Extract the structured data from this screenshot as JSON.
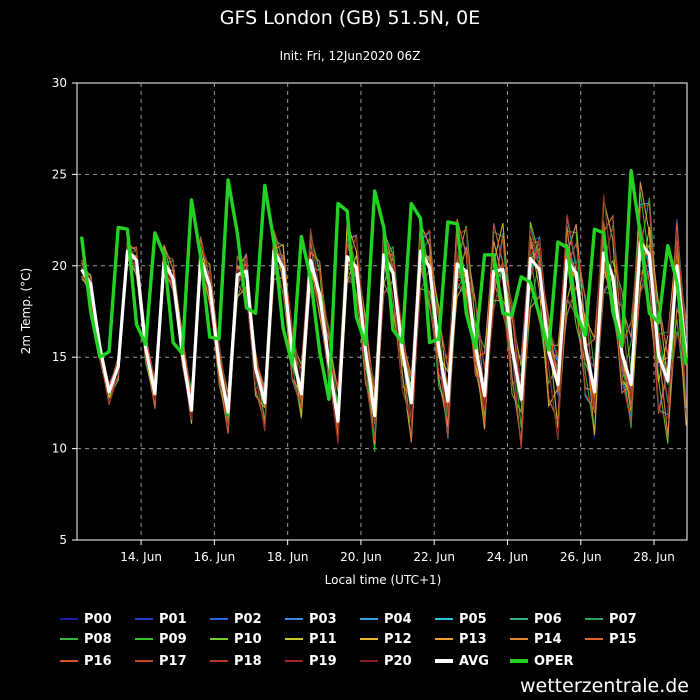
{
  "chart_data": {
    "type": "line",
    "title": "GFS London (GB) 51.5N, 0E",
    "subtitle": "Init: Fri, 12Jun2020 06Z",
    "xlabel": "Local time (UTC+1)",
    "ylabel": "2m Temp. (°C)",
    "ylim": [
      5,
      30
    ],
    "yticks": [
      5,
      10,
      15,
      20,
      25,
      30
    ],
    "xlim_days": [
      12.25,
      28.9
    ],
    "xticks": [
      {
        "day": 14,
        "label": "14. Jun"
      },
      {
        "day": 16,
        "label": "16. Jun"
      },
      {
        "day": 18,
        "label": "18. Jun"
      },
      {
        "day": 20,
        "label": "20. Jun"
      },
      {
        "day": 22,
        "label": "22. Jun"
      },
      {
        "day": 24,
        "label": "24. Jun"
      },
      {
        "day": 26,
        "label": "26. Jun"
      },
      {
        "day": 28,
        "label": "28. Jun"
      }
    ],
    "grid": true,
    "legend_position": "bottom",
    "x_days": [
      12.375,
      12.625,
      12.875,
      13.125,
      13.375,
      13.625,
      13.875,
      14.125,
      14.375,
      14.625,
      14.875,
      15.125,
      15.375,
      15.625,
      15.875,
      16.125,
      16.375,
      16.625,
      16.875,
      17.125,
      17.375,
      17.625,
      17.875,
      18.125,
      18.375,
      18.625,
      18.875,
      19.125,
      19.375,
      19.625,
      19.875,
      20.125,
      20.375,
      20.625,
      20.875,
      21.125,
      21.375,
      21.625,
      21.875,
      22.125,
      22.375,
      22.625,
      22.875,
      23.125,
      23.375,
      23.625,
      23.875,
      24.125,
      24.375,
      24.625,
      24.875,
      25.125,
      25.375,
      25.625,
      25.875,
      26.125,
      26.375,
      26.625,
      26.875,
      27.125,
      27.375,
      27.625,
      27.875,
      28.125,
      28.375,
      28.625,
      28.875
    ],
    "avg": [
      19.8,
      19.0,
      15.5,
      13.1,
      14.5,
      20.8,
      20.3,
      15.5,
      13.0,
      20.2,
      19.3,
      15.2,
      12.1,
      20.4,
      18.9,
      14.6,
      12.0,
      19.5,
      19.7,
      14.4,
      12.5,
      20.8,
      19.9,
      15.2,
      13.0,
      20.3,
      18.4,
      14.7,
      11.5,
      20.5,
      19.9,
      15.4,
      11.8,
      20.6,
      19.6,
      15.4,
      12.5,
      20.8,
      19.9,
      15.5,
      12.6,
      20.1,
      19.7,
      15.6,
      12.9,
      19.7,
      19.8,
      15.5,
      12.7,
      20.4,
      19.8,
      15.3,
      13.5,
      20.3,
      19.6,
      15.6,
      13.1,
      20.7,
      19.4,
      15.2,
      13.5,
      21.3,
      20.6,
      15.1,
      13.7,
      20.0,
      15.0
    ],
    "oper": [
      21.6,
      17.5,
      15.0,
      15.3,
      22.1,
      22.0,
      16.8,
      15.7,
      21.8,
      20.6,
      15.8,
      15.2,
      23.6,
      20.5,
      16.1,
      16.0,
      24.7,
      21.8,
      17.7,
      17.4,
      24.4,
      21.3,
      16.6,
      14.6,
      21.6,
      19.3,
      15.3,
      12.7,
      23.4,
      23.0,
      17.2,
      15.7,
      24.1,
      22.1,
      16.5,
      15.8,
      23.4,
      22.6,
      15.8,
      16.0,
      22.4,
      22.3,
      17.4,
      15.5,
      20.6,
      20.6,
      17.4,
      17.3,
      19.4,
      19.1,
      17.3,
      15.4,
      21.3,
      21.0,
      17.4,
      16.2,
      22.0,
      21.8,
      17.5,
      15.6,
      25.2,
      21.7,
      17.4,
      16.9,
      21.1,
      19.1,
      14.6
    ],
    "series": [
      {
        "name": "P00",
        "color": "#1a1aa8"
      },
      {
        "name": "P01",
        "color": "#1f3fcf"
      },
      {
        "name": "P02",
        "color": "#2a66e0"
      },
      {
        "name": "P03",
        "color": "#3f86e0"
      },
      {
        "name": "P04",
        "color": "#3ca3e0"
      },
      {
        "name": "P05",
        "color": "#2fc3d6"
      },
      {
        "name": "P06",
        "color": "#2fb18a"
      },
      {
        "name": "P07",
        "color": "#2ca35a"
      },
      {
        "name": "P08",
        "color": "#34b544"
      },
      {
        "name": "P09",
        "color": "#2ec52a"
      },
      {
        "name": "P10",
        "color": "#7acb2c"
      },
      {
        "name": "P11",
        "color": "#c9cb2c"
      },
      {
        "name": "P12",
        "color": "#e8b82c"
      },
      {
        "name": "P13",
        "color": "#eea030"
      },
      {
        "name": "P14",
        "color": "#e8842e"
      },
      {
        "name": "P15",
        "color": "#e2632e"
      },
      {
        "name": "P16",
        "color": "#d8542a"
      },
      {
        "name": "P17",
        "color": "#c8472a"
      },
      {
        "name": "P18",
        "color": "#b83826"
      },
      {
        "name": "P19",
        "color": "#a02a22"
      },
      {
        "name": "P20",
        "color": "#8a1e1e"
      },
      {
        "name": "AVG",
        "color": "#ffffff"
      },
      {
        "name": "OPER",
        "color": "#22d322"
      }
    ]
  },
  "credit": "wetterzentrale.de"
}
